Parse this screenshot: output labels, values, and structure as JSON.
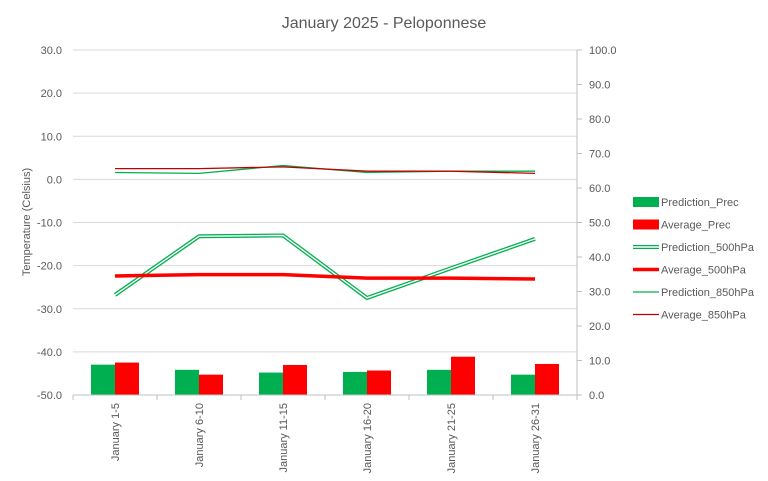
{
  "chart_data": {
    "type": "bar+line",
    "title": "January 2025 - Peloponnese",
    "ylabel_left": "Temperature (Celsius)",
    "ylim_left": [
      -50,
      30
    ],
    "yticks_left": [
      "30.0",
      "20.0",
      "10.0",
      "0.0",
      "-10.0",
      "-20.0",
      "-30.0",
      "-40.0",
      "-50.0"
    ],
    "ylim_right": [
      0,
      100
    ],
    "yticks_right": [
      "100.0",
      "90.0",
      "80.0",
      "70.0",
      "60.0",
      "50.0",
      "40.0",
      "30.0",
      "20.0",
      "10.0",
      "0.0"
    ],
    "categories": [
      "January 1-5",
      "January 6-10",
      "January 11-15",
      "January 16-20",
      "January 21-25",
      "January 26-31"
    ],
    "grid": true,
    "legend_position": "right",
    "series": [
      {
        "name": "Prediction_Prec",
        "kind": "bar",
        "axis": "right",
        "color": "#00b050",
        "values": [
          8.8,
          7.3,
          6.5,
          6.7,
          7.3,
          5.9
        ]
      },
      {
        "name": "Average_Prec",
        "kind": "bar",
        "axis": "right",
        "color": "#ff0000",
        "values": [
          9.4,
          5.9,
          8.7,
          7.1,
          11.1,
          9.0
        ]
      },
      {
        "name": "Prediction_500hPa",
        "kind": "line-double",
        "axis": "left",
        "color": "#00b050",
        "values": [
          -26.8,
          -13.2,
          -13.0,
          -27.5,
          -20.6,
          -13.8
        ]
      },
      {
        "name": "Average_500hPa",
        "kind": "line-thick",
        "axis": "left",
        "color": "#ff0000",
        "values": [
          -22.4,
          -22.1,
          -22.1,
          -22.9,
          -22.9,
          -23.1
        ]
      },
      {
        "name": "Prediction_850hPa",
        "kind": "line",
        "axis": "left",
        "color": "#00b050",
        "values": [
          1.6,
          1.4,
          3.2,
          1.6,
          1.9,
          1.9
        ]
      },
      {
        "name": "Average_850hPa",
        "kind": "line",
        "axis": "left",
        "color": "#c00000",
        "values": [
          2.5,
          2.5,
          2.9,
          1.9,
          1.9,
          1.4
        ]
      }
    ]
  }
}
